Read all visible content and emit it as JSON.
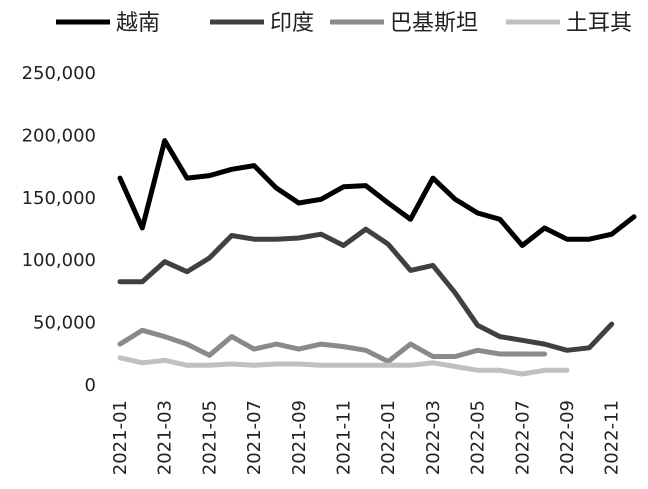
{
  "chart_data": {
    "type": "line",
    "title": "",
    "xlabel": "",
    "ylabel": "",
    "ylim": [
      0,
      250000
    ],
    "y_ticks": [
      "0",
      "50,000",
      "100,000",
      "150,000",
      "200,000",
      "250,000"
    ],
    "grid": false,
    "legend_position": "top",
    "categories": [
      "2021-01",
      "2021-02",
      "2021-03",
      "2021-04",
      "2021-05",
      "2021-06",
      "2021-07",
      "2021-08",
      "2021-09",
      "2021-10",
      "2021-11",
      "2021-12",
      "2022-01",
      "2022-02",
      "2022-03",
      "2022-04",
      "2022-05",
      "2022-06",
      "2022-07",
      "2022-08",
      "2022-09",
      "2022-10",
      "2022-11",
      "2022-12"
    ],
    "x_tick_labels": [
      "2021-01",
      "2021-03",
      "2021-05",
      "2021-07",
      "2021-09",
      "2021-11",
      "2022-01",
      "2022-03",
      "2022-05",
      "2022-07",
      "2022-09",
      "2022-11"
    ],
    "series": [
      {
        "name": "越南",
        "color": "#000000",
        "values": [
          165000,
          125000,
          195000,
          165000,
          167000,
          172000,
          175000,
          157000,
          145000,
          148000,
          158000,
          159000,
          145000,
          132000,
          165000,
          148000,
          137000,
          132000,
          111000,
          125000,
          116000,
          116000,
          120000,
          134000
        ]
      },
      {
        "name": "印度",
        "color": "#404040",
        "values": [
          82000,
          82000,
          98000,
          90000,
          101000,
          119000,
          116000,
          116000,
          117000,
          120000,
          111000,
          124000,
          112000,
          91000,
          95000,
          73000,
          47000,
          38000,
          35000,
          32000,
          27000,
          29000,
          48000,
          null
        ]
      },
      {
        "name": "巴基斯坦",
        "color": "#8a8a8a",
        "values": [
          32000,
          43000,
          38000,
          32000,
          23000,
          38000,
          28000,
          32000,
          28000,
          32000,
          30000,
          27000,
          18000,
          32000,
          22000,
          22000,
          27000,
          24000,
          24000,
          24000,
          null,
          null,
          null,
          null
        ]
      },
      {
        "name": "土耳其",
        "color": "#c0c0c0",
        "values": [
          21000,
          17000,
          19000,
          15000,
          15000,
          16000,
          15000,
          16000,
          16000,
          15000,
          15000,
          15000,
          15000,
          15000,
          17000,
          14000,
          11000,
          11000,
          8000,
          11000,
          11000,
          null,
          null,
          null
        ]
      }
    ]
  }
}
